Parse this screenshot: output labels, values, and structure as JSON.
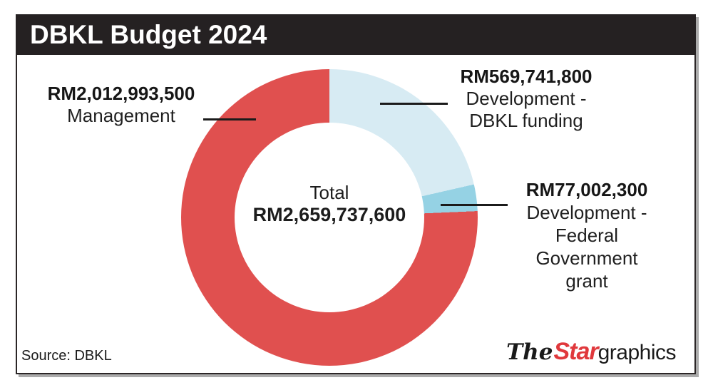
{
  "header": {
    "title": "DBKL Budget 2024"
  },
  "chart_data": {
    "type": "pie",
    "subtype": "donut",
    "title": "DBKL Budget 2024",
    "total_value_numeric": 2659737600,
    "center_label": "Total",
    "center_value": "RM2,659,737,600",
    "start_angle_deg": 0,
    "direction": "clockwise",
    "slices": [
      {
        "name": "Development - DBKL funding",
        "label_lines": [
          "Development -",
          "DBKL funding"
        ],
        "value": 569741800,
        "display_value": "RM569,741,800",
        "percent": 21.4,
        "color": "#d7ebf3"
      },
      {
        "name": "Development - Federal Government grant",
        "label_lines": [
          "Development -",
          "Federal",
          "Government",
          "grant"
        ],
        "value": 77002300,
        "display_value": "RM77,002,300",
        "percent": 2.9,
        "color": "#95d2e4"
      },
      {
        "name": "Management",
        "label_lines": [
          "Management"
        ],
        "value": 2012993500,
        "display_value": "RM2,012,993,500",
        "percent": 75.7,
        "color": "#e0504f"
      }
    ]
  },
  "footer": {
    "source": "Source: DBKL",
    "logo": {
      "the": "The",
      "star": "Star",
      "graphics": "graphics"
    }
  },
  "colors": {
    "header_bg": "#252122",
    "management_red": "#e0504f",
    "dbkl_funding_blue": "#d7ebf3",
    "federal_grant_blue": "#95d2e4",
    "logo_red": "#e0383c",
    "card_border": "#2b2627",
    "card_shadow": "#ababab"
  }
}
